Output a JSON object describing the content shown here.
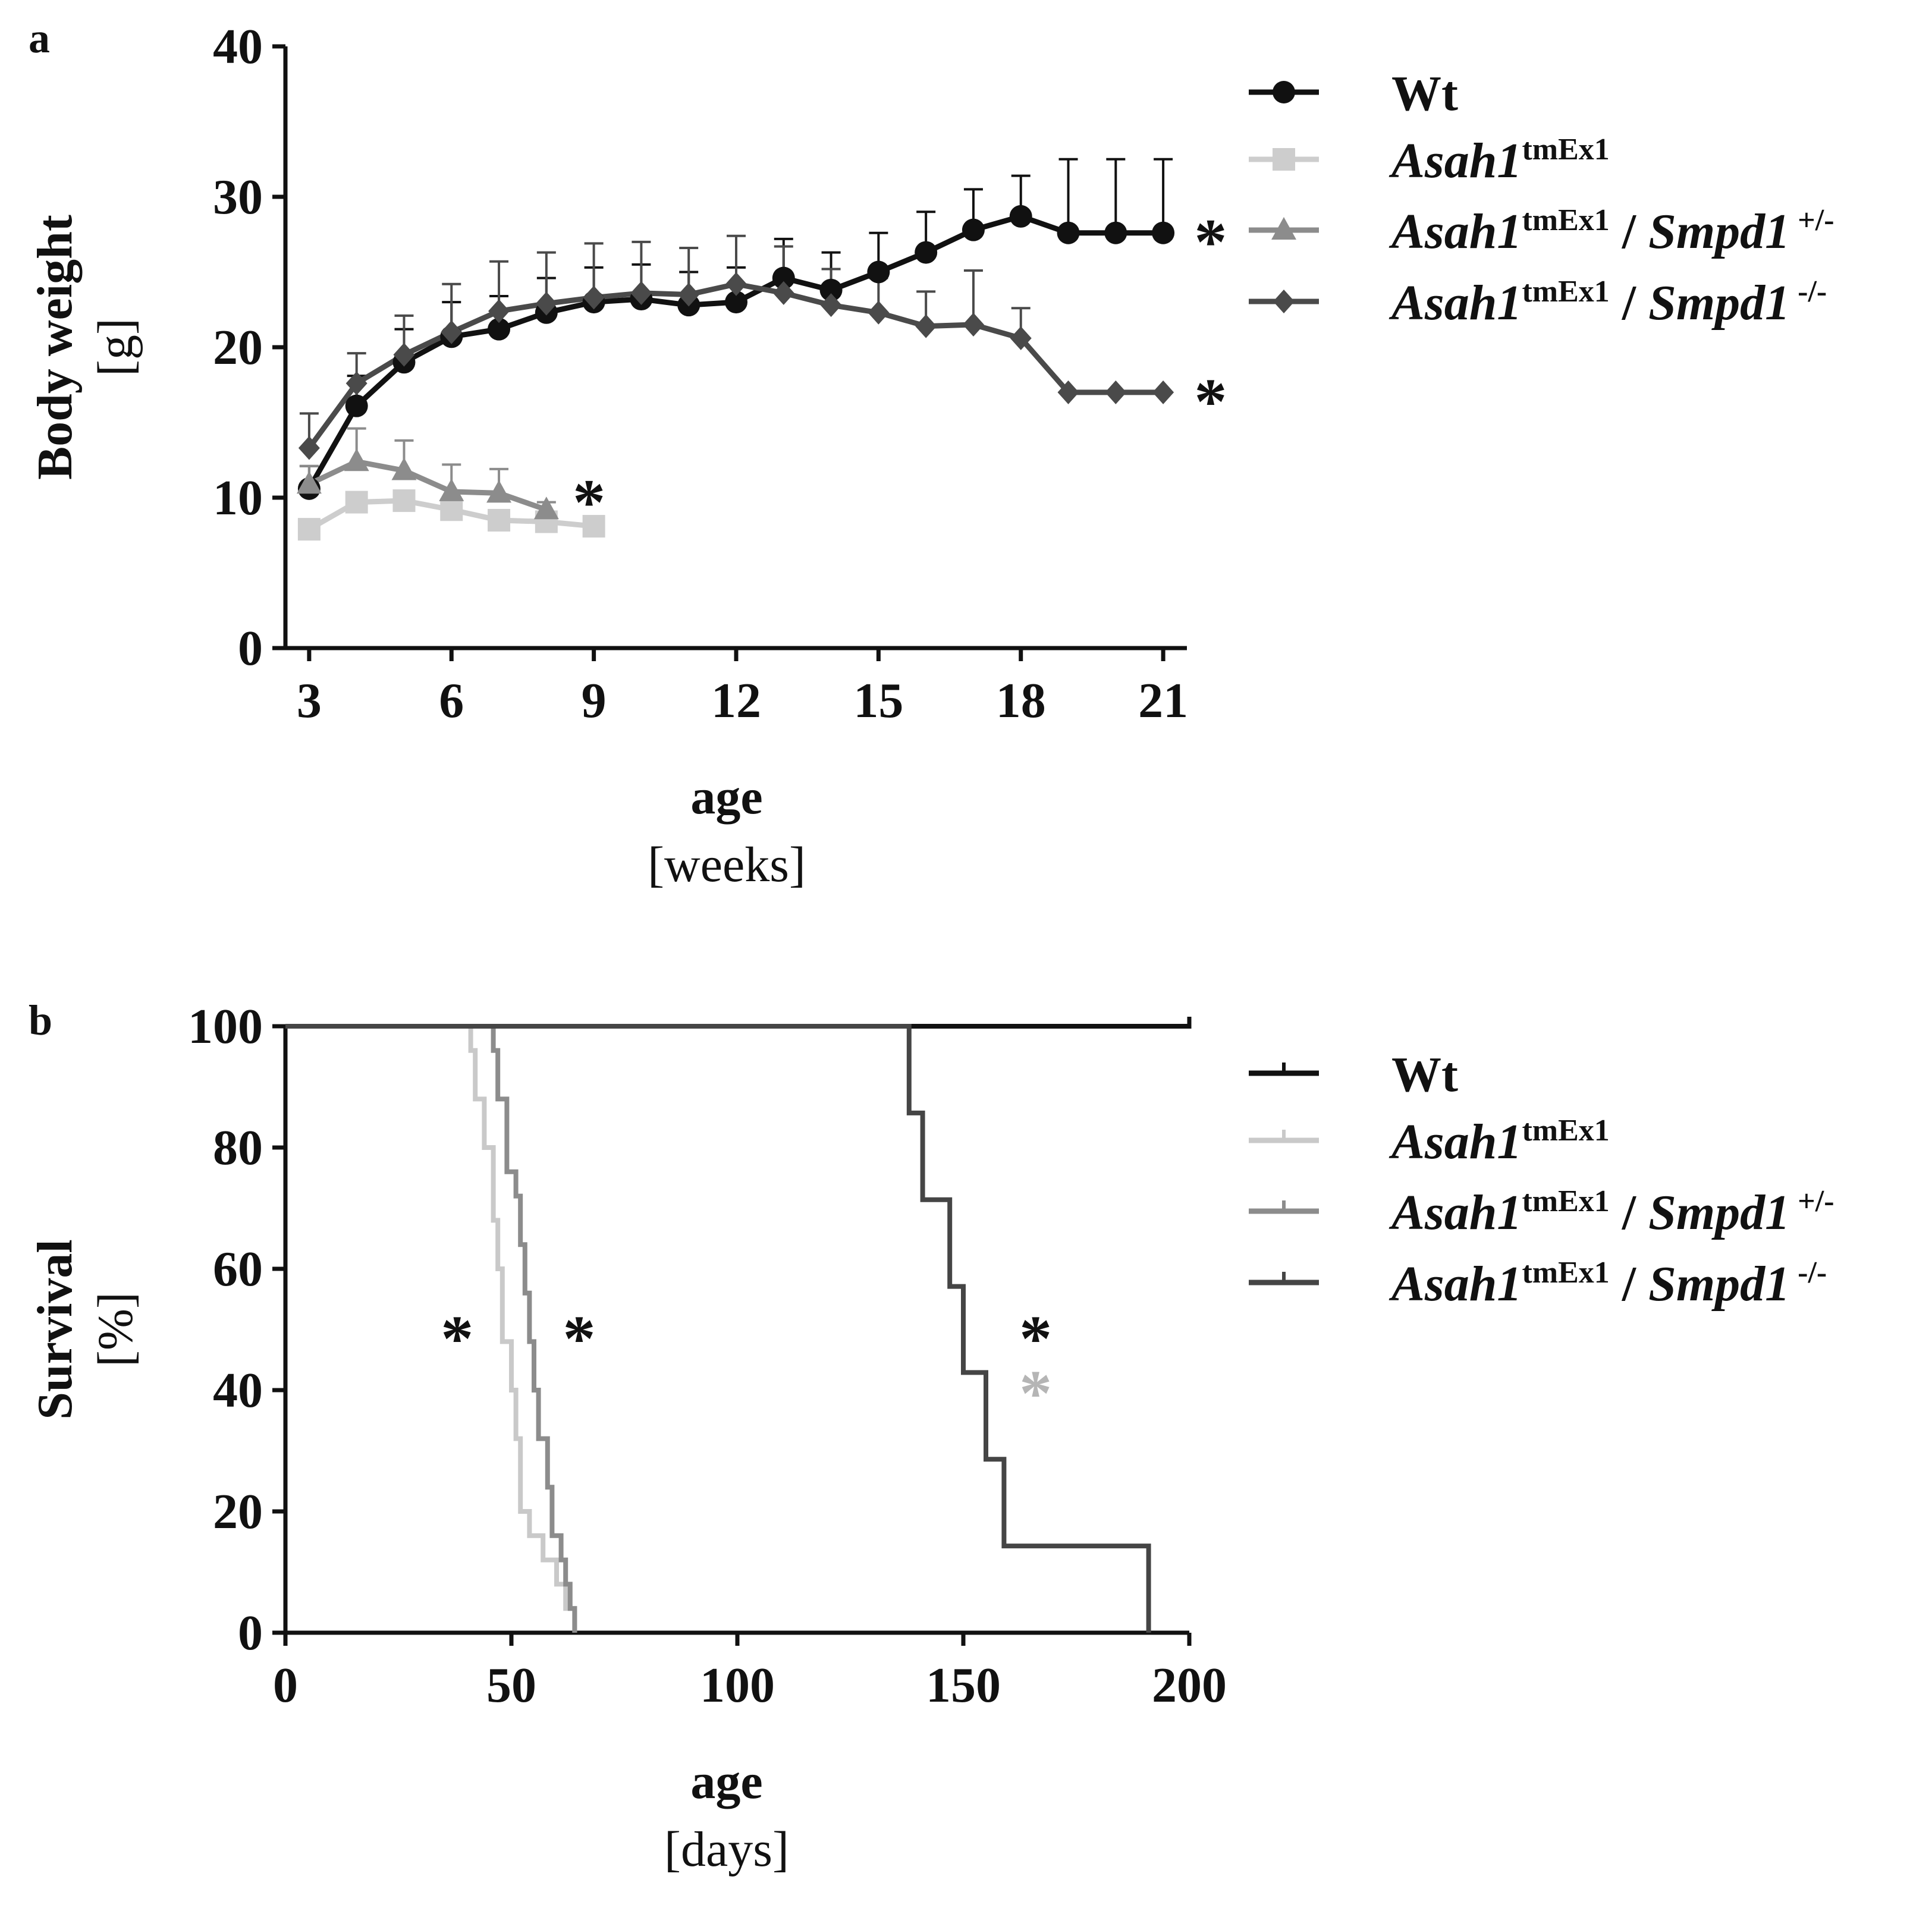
{
  "chart_data": [
    {
      "panel": "a",
      "type": "line",
      "xlabel": "age",
      "xunit": "[weeks]",
      "ylabel": "Body weight",
      "yunit": "[g]",
      "xlim": [
        2.5,
        21.5
      ],
      "ylim": [
        0,
        40
      ],
      "xticks": [
        3,
        6,
        9,
        12,
        15,
        18,
        21
      ],
      "yticks": [
        0,
        10,
        20,
        30,
        40
      ],
      "series": [
        {
          "name": "Wt",
          "color": "#111111",
          "marker": "circle",
          "x": [
            3,
            4,
            5,
            6,
            7,
            8,
            9,
            10,
            11,
            12,
            13,
            14,
            15,
            16,
            17,
            18,
            19,
            20,
            21
          ],
          "y": [
            10.6,
            16.1,
            19.0,
            20.7,
            21.2,
            22.3,
            23.0,
            23.2,
            22.8,
            23.0,
            24.6,
            23.8,
            25.0,
            26.3,
            27.8,
            28.7,
            27.6,
            27.6,
            27.6
          ],
          "err": [
            1.5,
            2.0,
            2.2,
            2.3,
            2.2,
            2.3,
            2.3,
            2.3,
            2.2,
            2.3,
            2.6,
            2.5,
            2.6,
            2.7,
            2.7,
            2.7,
            4.9,
            4.9,
            4.9
          ]
        },
        {
          "name": "Asah1 tmEx1",
          "color": "#cdcdcd",
          "marker": "square",
          "x": [
            3,
            4,
            5,
            6,
            7,
            8,
            9
          ],
          "y": [
            7.9,
            9.7,
            9.8,
            9.2,
            8.5,
            8.4,
            8.1
          ],
          "err": [
            0.5,
            0.6,
            0.6,
            0.5,
            0.5,
            0.4,
            0.3
          ]
        },
        {
          "name": "Asah1 tmEx1 / Smpd1 +/-",
          "color": "#8c8c8c",
          "marker": "triangle",
          "x": [
            3,
            4,
            5,
            6,
            7,
            8
          ],
          "y": [
            10.9,
            12.4,
            11.8,
            10.4,
            10.3,
            9.2
          ],
          "err": [
            1.2,
            2.2,
            2.0,
            1.8,
            1.6,
            0.5
          ]
        },
        {
          "name": "Asah1 tmEx1 / Smpd1 -/-",
          "color": "#4a4a4a",
          "marker": "diamond",
          "x": [
            3,
            4,
            5,
            6,
            7,
            8,
            9,
            10,
            11,
            12,
            13,
            14,
            15,
            16,
            17,
            18,
            19,
            20,
            21
          ],
          "y": [
            13.3,
            17.6,
            19.5,
            21.0,
            22.4,
            22.9,
            23.3,
            23.6,
            23.5,
            24.2,
            23.6,
            22.8,
            22.3,
            21.4,
            21.5,
            20.6,
            17.0,
            17.0,
            17.0
          ],
          "err": [
            2.3,
            2.0,
            2.6,
            3.2,
            3.3,
            3.4,
            3.6,
            3.4,
            3.1,
            3.2,
            3.1,
            2.4,
            2.3,
            2.3,
            3.6,
            2.0,
            0,
            0,
            0
          ]
        }
      ],
      "annotations": [
        {
          "text": "*",
          "x": 22.0,
          "y": 27.6,
          "color": "#111111"
        },
        {
          "text": "*",
          "x": 22.0,
          "y": 17.0,
          "color": "#111111"
        },
        {
          "text": "*",
          "x": 8.9,
          "y": 10.3,
          "color": "#111111"
        }
      ]
    },
    {
      "panel": "b",
      "type": "line",
      "step": true,
      "xlabel": "age",
      "xunit": "[days]",
      "ylabel": "Survival",
      "yunit": "[%]",
      "xlim": [
        0,
        200
      ],
      "ylim": [
        0,
        100
      ],
      "xticks": [
        0,
        50,
        100,
        150,
        200
      ],
      "yticks": [
        0,
        20,
        40,
        60,
        80,
        100
      ],
      "series": [
        {
          "name": "Wt",
          "color": "#111111",
          "times": [
            0,
            200
          ],
          "surv": [
            100,
            100
          ]
        },
        {
          "name": "Asah1 tmEx1",
          "color": "#c9c9c9",
          "times": [
            0,
            41,
            42,
            44,
            46,
            47,
            48,
            50,
            51,
            52,
            54,
            55,
            57,
            59,
            60,
            62,
            64
          ],
          "surv": [
            100,
            96,
            88,
            80,
            68,
            60,
            48,
            40,
            32,
            20,
            16,
            16,
            12,
            12,
            8,
            4,
            0
          ]
        },
        {
          "name": "Asah1 tmEx1 / Smpd1 +/-",
          "color": "#8c8c8c",
          "times": [
            0,
            46,
            47,
            49,
            51,
            52,
            53,
            54,
            55,
            56,
            58,
            59,
            61,
            62,
            63,
            64
          ],
          "surv": [
            100,
            96,
            88,
            76,
            72,
            64,
            56,
            48,
            40,
            32,
            24,
            16,
            12,
            8,
            4,
            0
          ]
        },
        {
          "name": "Asah1 tmEx1 / Smpd1 -/-",
          "color": "#454545",
          "times": [
            0,
            138,
            141,
            147,
            150,
            155,
            159,
            191
          ],
          "surv": [
            100,
            85.7,
            71.4,
            57.1,
            42.9,
            28.6,
            14.3,
            0
          ]
        }
      ],
      "annotations": [
        {
          "text": "*",
          "x": 38,
          "y": 50,
          "color": "#111111"
        },
        {
          "text": "*",
          "x": 65,
          "y": 50,
          "color": "#111111"
        },
        {
          "text": "*",
          "x": 166,
          "y": 50,
          "color": "#111111"
        },
        {
          "text": "*",
          "x": 166,
          "y": 41,
          "color": "#b5b5b5"
        }
      ]
    }
  ],
  "legend": {
    "entries": [
      {
        "main": "Wt",
        "ital": false,
        "sup": "",
        "second": "",
        "second_sup": ""
      },
      {
        "main": "Asah1",
        "ital": true,
        "sup": "tmEx1",
        "second": "",
        "second_sup": ""
      },
      {
        "main": "Asah1",
        "ital": true,
        "sup": "tmEx1",
        "second": "Smpd1",
        "second_sup": "+/-"
      },
      {
        "main": "Asah1",
        "ital": true,
        "sup": "tmEx1",
        "second": "Smpd1",
        "second_sup": "-/-"
      }
    ],
    "separator": " / "
  }
}
